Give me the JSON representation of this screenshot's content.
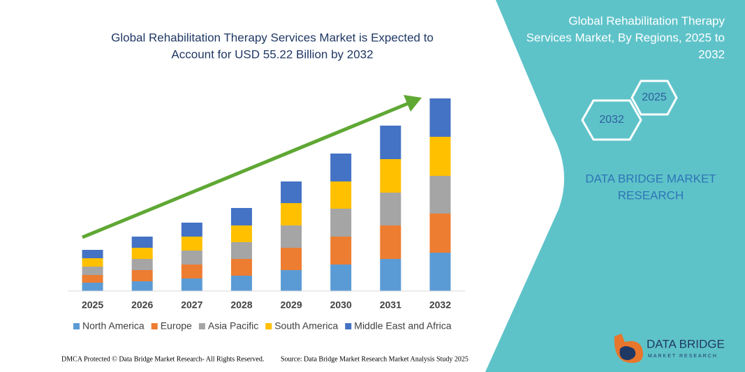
{
  "chart_data": {
    "type": "stacked-bar",
    "title": [
      "Global Rehabilitation Therapy Services Market is Expected to",
      "Account for USD 55.22 Billion by 2032"
    ],
    "categories": [
      "2025",
      "2026",
      "2027",
      "2028",
      "2029",
      "2030",
      "2031",
      "2032"
    ],
    "series": [
      {
        "name": "North America",
        "color": "#5b9bd5",
        "values": [
          2.4,
          2.8,
          3.6,
          4.4,
          6.0,
          7.6,
          9.2,
          11.0
        ]
      },
      {
        "name": "Europe",
        "color": "#ed7d31",
        "values": [
          2.2,
          3.2,
          4.0,
          4.8,
          6.4,
          8.0,
          9.6,
          11.2
        ]
      },
      {
        "name": "Asia Pacific",
        "color": "#a5a5a5",
        "values": [
          2.4,
          3.2,
          4.0,
          4.8,
          6.4,
          8.0,
          9.4,
          10.8
        ]
      },
      {
        "name": "South America",
        "color": "#ffc000",
        "values": [
          2.4,
          3.2,
          4.0,
          4.8,
          6.4,
          7.8,
          9.6,
          11.2
        ]
      },
      {
        "name": "Middle East and Africa",
        "color": "#4472c4",
        "values": [
          2.4,
          3.2,
          4.0,
          5.0,
          6.2,
          8.0,
          9.6,
          11.0
        ]
      }
    ],
    "ylim": [
      0,
      60
    ],
    "grid": false,
    "legend": "bottom"
  },
  "panel": {
    "title": [
      "Global Rehabilitation Therapy",
      "Services Market, By Regions, 2025 to",
      "2032"
    ],
    "hexagons": [
      "2025",
      "2032"
    ],
    "brand": [
      "DATA BRIDGE MARKET",
      "RESEARCH"
    ]
  },
  "logo": [
    "DATA BRIDGE",
    "MARKET RESEARCH"
  ],
  "footer": {
    "left": "DMCA Protected © Data Bridge Market Research- All Rights Reserved.",
    "right": "Source: Data Bridge Market Research Market Analysis Study 2025"
  }
}
